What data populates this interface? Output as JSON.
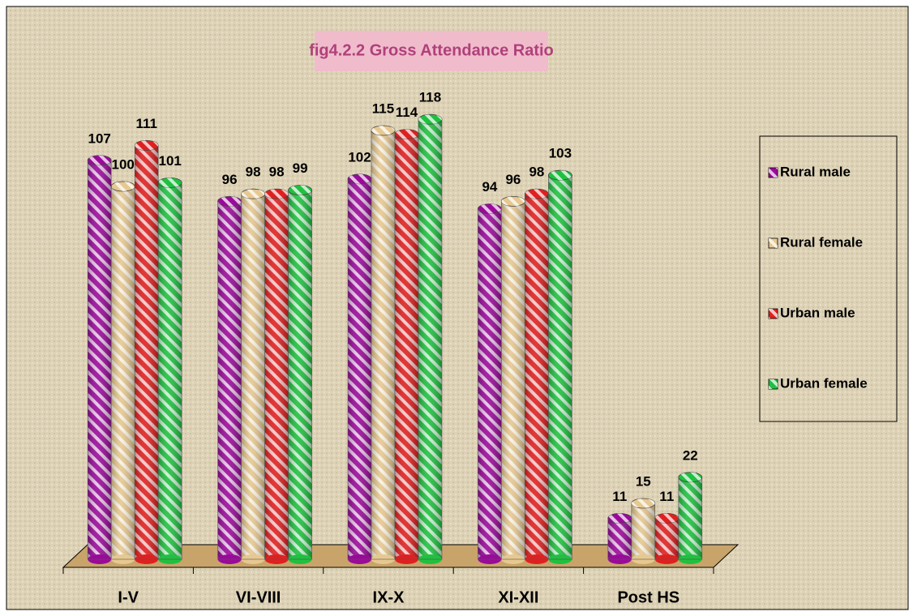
{
  "chart_data": {
    "type": "bar",
    "title": "fig4.2.2 Gross Attendance Ratio",
    "categories": [
      "I-V",
      "VI-VIII",
      "IX-X",
      "XI-XII",
      "Post HS"
    ],
    "series": [
      {
        "name": "Rural male",
        "color": "#9a0a9a",
        "values": [
          107,
          96,
          102,
          94,
          11
        ]
      },
      {
        "name": "Rural female",
        "color": "#e6c890",
        "values": [
          100,
          98,
          115,
          96,
          15
        ]
      },
      {
        "name": "Urban male",
        "color": "#e02020",
        "values": [
          111,
          98,
          114,
          98,
          11
        ]
      },
      {
        "name": "Urban female",
        "color": "#20c040",
        "values": [
          101,
          99,
          118,
          103,
          22
        ]
      }
    ],
    "ylim": [
      0,
      130
    ],
    "legend": "right"
  }
}
